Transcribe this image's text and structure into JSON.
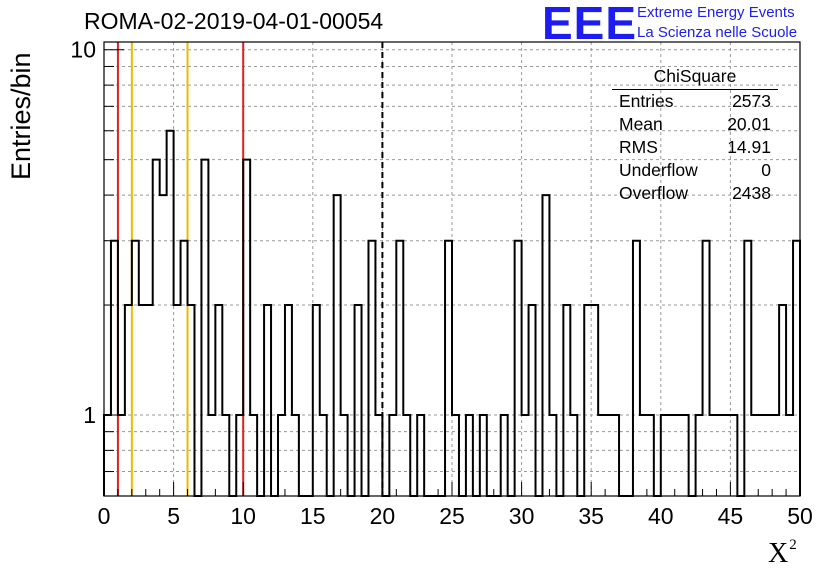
{
  "title": "ROMA-02-2019-04-01-00054",
  "logo": {
    "mark": "EEE",
    "line1": "Extreme Energy Events",
    "line2": "La Scienza nelle Scuole",
    "color": "#1d1df0"
  },
  "stats": {
    "title": "ChiSquare",
    "rows": [
      {
        "label": "Entries",
        "value": "2573"
      },
      {
        "label": "Mean",
        "value": "20.01"
      },
      {
        "label": "RMS",
        "value": "14.91"
      },
      {
        "label": "Underflow",
        "value": "0"
      },
      {
        "label": "Overflow",
        "value": "2438"
      }
    ]
  },
  "chart_data": {
    "type": "histogram",
    "title": "ROMA-02-2019-04-01-00054",
    "xlabel": "X",
    "xlabel_superscript": "2",
    "ylabel": "Entries/bin",
    "xlim": [
      0,
      50
    ],
    "ylim": [
      0.6,
      10.5
    ],
    "y_scale": "log",
    "bin_width": 0.5,
    "grid": true,
    "x_ticks": [
      "0",
      "5",
      "10",
      "15",
      "20",
      "25",
      "30",
      "35",
      "40",
      "45",
      "50"
    ],
    "y_ticks": [
      "1",
      "10"
    ],
    "values": [
      1,
      3,
      1,
      2,
      3,
      2,
      2,
      5,
      4,
      6,
      2,
      3,
      2,
      0,
      5,
      1,
      2,
      1,
      0,
      1,
      5,
      1,
      0,
      2,
      0,
      1,
      2,
      1,
      0,
      0,
      2,
      1,
      0,
      4,
      1,
      0,
      2,
      0,
      3,
      1,
      0,
      1,
      3,
      1,
      0,
      1,
      0,
      0,
      0,
      3,
      1,
      0,
      1,
      0,
      1,
      0,
      0,
      1,
      0,
      3,
      1,
      2,
      0,
      4,
      1,
      0,
      2,
      1,
      0,
      2,
      2,
      1,
      1,
      1,
      0,
      0,
      3,
      1,
      1,
      0,
      1,
      1,
      1,
      1,
      0,
      1,
      3,
      1,
      1,
      1,
      1,
      0,
      3,
      1,
      1,
      1,
      1,
      2,
      1,
      3
    ],
    "reference_lines": [
      {
        "x": 1,
        "color": "#e02020",
        "style": "solid"
      },
      {
        "x": 2,
        "color": "#f0b800",
        "style": "solid"
      },
      {
        "x": 6,
        "color": "#f0b800",
        "style": "solid"
      },
      {
        "x": 10,
        "color": "#e02020",
        "style": "solid"
      },
      {
        "x": 20,
        "color": "#000000",
        "style": "dashed"
      }
    ],
    "line_color": "#000000",
    "grid_color": "#9a9a9a"
  }
}
